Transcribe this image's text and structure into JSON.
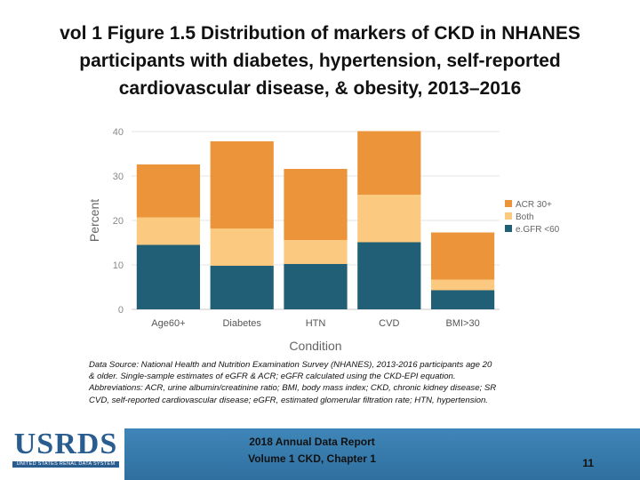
{
  "title_lines": [
    "vol 1 Figure 1.5 Distribution of markers of CKD in NHANES",
    "participants with diabetes, hypertension, self-reported",
    "cardiovascular disease, & obesity, 2013–2016"
  ],
  "chart_data": {
    "type": "bar",
    "stacked": true,
    "categories": [
      "Age60+",
      "Diabetes",
      "HTN",
      "CVD",
      "BMI>30"
    ],
    "series": [
      {
        "name": "e.GFR <60",
        "color": "#215f76",
        "values": [
          14.5,
          9.8,
          10.2,
          15.1,
          4.3
        ]
      },
      {
        "name": "Both",
        "color": "#fbc97f",
        "values": [
          6.2,
          8.4,
          5.4,
          10.7,
          2.4
        ]
      },
      {
        "name": "ACR 30+",
        "color": "#eb943a",
        "values": [
          11.9,
          19.6,
          16.0,
          14.3,
          10.6
        ]
      }
    ],
    "totals": [
      32.6,
      37.8,
      31.6,
      40.1,
      17.3
    ],
    "xlabel": "Condition",
    "ylabel": "Percent",
    "ylim": [
      0,
      40
    ],
    "yticks": [
      "0",
      "10",
      "20",
      "30",
      "40"
    ],
    "grid": true,
    "legend_position": "right",
    "legend_order": [
      "ACR 30+",
      "Both",
      "e.GFR <60"
    ]
  },
  "note_lines": [
    "Data Source: National Health and Nutrition Examination Survey (NHANES), 2013-2016 participants age 20",
    "& older. Single-sample estimates of eGFR & ACR; eGFR calculated using the CKD-EPI equation.",
    "Abbreviations: ACR, urine albumin/creatinine ratio; BMI, body mass index; CKD, chronic kidney disease; SR",
    "CVD, self-reported cardiovascular disease; eGFR, estimated glomerular filtration rate; HTN, hypertension."
  ],
  "footer": {
    "logo_text": "USRDS",
    "logo_subtext": "UNITED STATES RENAL DATA SYSTEM",
    "line1": "2018 Annual Data Report",
    "line2": "Volume 1 CKD, Chapter 1",
    "page_number": "11",
    "bar_color": "#3579a9"
  }
}
